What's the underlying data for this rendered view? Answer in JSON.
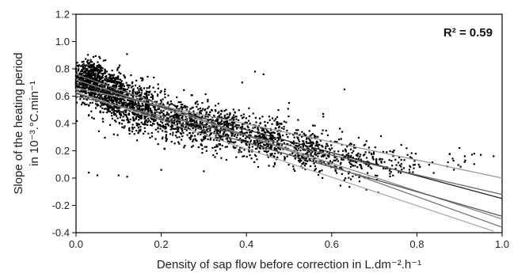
{
  "chart_data": {
    "type": "scatter",
    "title": "",
    "xlabel": "Density of sap flow before correction in L.dm⁻².h⁻¹",
    "ylabel_line1": "Slope of the heating period",
    "ylabel_line2": "in 10⁻³.°C.min⁻¹",
    "annotation": "R² = 0.59",
    "xlim": [
      0.0,
      1.0
    ],
    "ylim": [
      -0.4,
      1.2
    ],
    "xticks": [
      0.0,
      0.2,
      0.4,
      0.6,
      0.8,
      1.0
    ],
    "xtick_labels": [
      "0.0",
      "0.2",
      "0.4",
      "0.6",
      "0.8",
      "1.0"
    ],
    "yticks": [
      -0.4,
      -0.2,
      0.0,
      0.2,
      0.4,
      0.6,
      0.8,
      1.0,
      1.2
    ],
    "ytick_labels": [
      "-0.4",
      "-0.2",
      "0.0",
      "0.2",
      "0.4",
      "0.6",
      "0.8",
      "1.0",
      "1.2"
    ],
    "grid": false,
    "points_description_clusters": [
      {
        "x": 0.03,
        "y": 0.72,
        "spread_x": 0.03,
        "spread_y": 0.12,
        "n": 500
      },
      {
        "x": 0.08,
        "y": 0.62,
        "spread_x": 0.04,
        "spread_y": 0.14,
        "n": 550
      },
      {
        "x": 0.15,
        "y": 0.52,
        "spread_x": 0.05,
        "spread_y": 0.14,
        "n": 450
      },
      {
        "x": 0.25,
        "y": 0.42,
        "spread_x": 0.06,
        "spread_y": 0.13,
        "n": 400
      },
      {
        "x": 0.35,
        "y": 0.36,
        "spread_x": 0.06,
        "spread_y": 0.13,
        "n": 350
      },
      {
        "x": 0.45,
        "y": 0.28,
        "spread_x": 0.06,
        "spread_y": 0.13,
        "n": 300
      },
      {
        "x": 0.55,
        "y": 0.2,
        "spread_x": 0.06,
        "spread_y": 0.12,
        "n": 230
      },
      {
        "x": 0.65,
        "y": 0.12,
        "spread_x": 0.06,
        "spread_y": 0.11,
        "n": 150
      },
      {
        "x": 0.75,
        "y": 0.1,
        "spread_x": 0.06,
        "spread_y": 0.08,
        "n": 60
      },
      {
        "x": 0.88,
        "y": 0.12,
        "spread_x": 0.06,
        "spread_y": 0.06,
        "n": 20
      }
    ],
    "outliers": [
      {
        "x": 0.42,
        "y": 0.78
      },
      {
        "x": 0.44,
        "y": 0.76
      },
      {
        "x": 0.63,
        "y": 0.65
      },
      {
        "x": 0.39,
        "y": 0.7
      },
      {
        "x": 0.03,
        "y": 0.04
      },
      {
        "x": 0.05,
        "y": 0.02
      },
      {
        "x": 0.12,
        "y": 0.01
      },
      {
        "x": 0.1,
        "y": 0.02
      },
      {
        "x": 0.95,
        "y": 0.17
      },
      {
        "x": 0.98,
        "y": 0.16
      },
      {
        "x": 0.9,
        "y": 0.22
      },
      {
        "x": 0.3,
        "y": 0.05
      },
      {
        "x": 0.2,
        "y": 0.06
      },
      {
        "x": 0.58,
        "y": 0.47
      },
      {
        "x": 0.5,
        "y": 0.55
      }
    ],
    "series": [
      {
        "intercept": 0.66,
        "slope": -0.66,
        "x_end": 1.0,
        "color": "#999999"
      },
      {
        "intercept": 0.69,
        "slope": -0.84,
        "x_end": 1.0,
        "color": "#222222"
      },
      {
        "intercept": 0.72,
        "slope": -1.02,
        "x_end": 1.0,
        "color": "#888888"
      },
      {
        "intercept": 0.62,
        "slope": -0.9,
        "x_end": 1.0,
        "color": "#555555"
      },
      {
        "intercept": 0.76,
        "slope": -1.12,
        "x_end": 1.0,
        "color": "#777777"
      },
      {
        "intercept": 0.63,
        "slope": -1.04,
        "x_end": 0.98,
        "color": "#aaaaaa"
      },
      {
        "intercept": 0.6,
        "slope": -0.72,
        "x_end": 1.0,
        "color": "#666666"
      }
    ],
    "point_color": "#000000"
  }
}
